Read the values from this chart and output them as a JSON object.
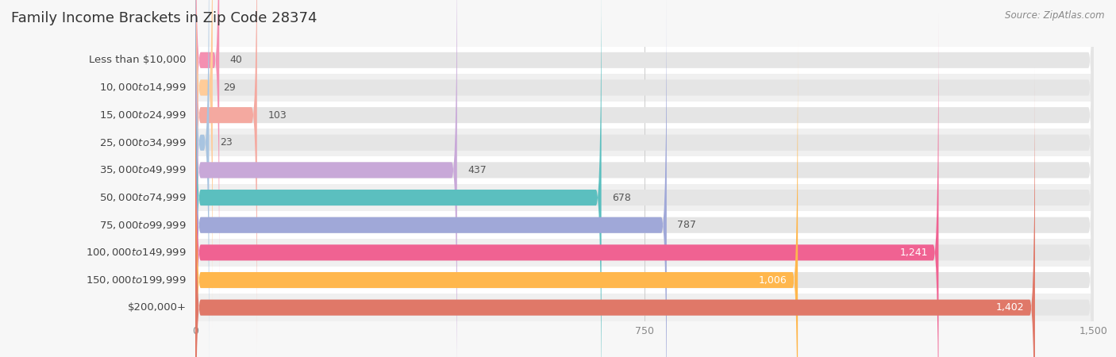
{
  "title": "Family Income Brackets in Zip Code 28374",
  "source": "Source: ZipAtlas.com",
  "categories": [
    "Less than $10,000",
    "$10,000 to $14,999",
    "$15,000 to $24,999",
    "$25,000 to $34,999",
    "$35,000 to $49,999",
    "$50,000 to $74,999",
    "$75,000 to $99,999",
    "$100,000 to $149,999",
    "$150,000 to $199,999",
    "$200,000+"
  ],
  "values": [
    40,
    29,
    103,
    23,
    437,
    678,
    787,
    1241,
    1006,
    1402
  ],
  "bar_colors": [
    "#f48fb1",
    "#ffcc99",
    "#f4a9a0",
    "#a8c4e0",
    "#c8a8d8",
    "#5bbfbf",
    "#a0a8d8",
    "#f06292",
    "#ffb74d",
    "#e07868"
  ],
  "xlim": [
    0,
    1500
  ],
  "xticks": [
    0,
    750,
    1500
  ],
  "background_color": "#f7f7f7",
  "bar_bg_color": "#e5e5e5",
  "row_bg_colors": [
    "#ffffff",
    "#f0f0f0"
  ],
  "title_fontsize": 13,
  "label_fontsize": 9.5,
  "value_fontsize": 9,
  "source_fontsize": 8.5
}
